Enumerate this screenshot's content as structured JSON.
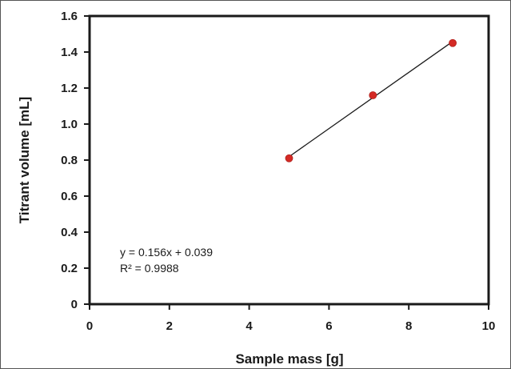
{
  "chart_data": {
    "type": "scatter",
    "title": "",
    "xlabel": "Sample mass [g]",
    "ylabel": "Titrant volume [mL]",
    "xlim": [
      0,
      10
    ],
    "ylim": [
      0,
      1.6
    ],
    "xticks": [
      "0",
      "2",
      "4",
      "6",
      "8",
      "10"
    ],
    "yticks": [
      "0",
      "0.2",
      "0.4",
      "0.6",
      "0.8",
      "1.0",
      "1.2",
      "1.4",
      "1.6"
    ],
    "grid": false,
    "series": [
      {
        "x": [
          5.0,
          7.1,
          9.1
        ],
        "y": [
          0.81,
          1.16,
          1.45
        ]
      }
    ],
    "trendline": {
      "slope": 0.156,
      "intercept": 0.039,
      "x_range": [
        5.0,
        9.1
      ]
    },
    "annotations": {
      "equation": "y = 0.156x + 0.039",
      "r_squared": "R² = 0.9988"
    },
    "colors": {
      "marker": "#d42a25",
      "line": "#1a1a1a",
      "axis": "#1a1a1a"
    }
  }
}
